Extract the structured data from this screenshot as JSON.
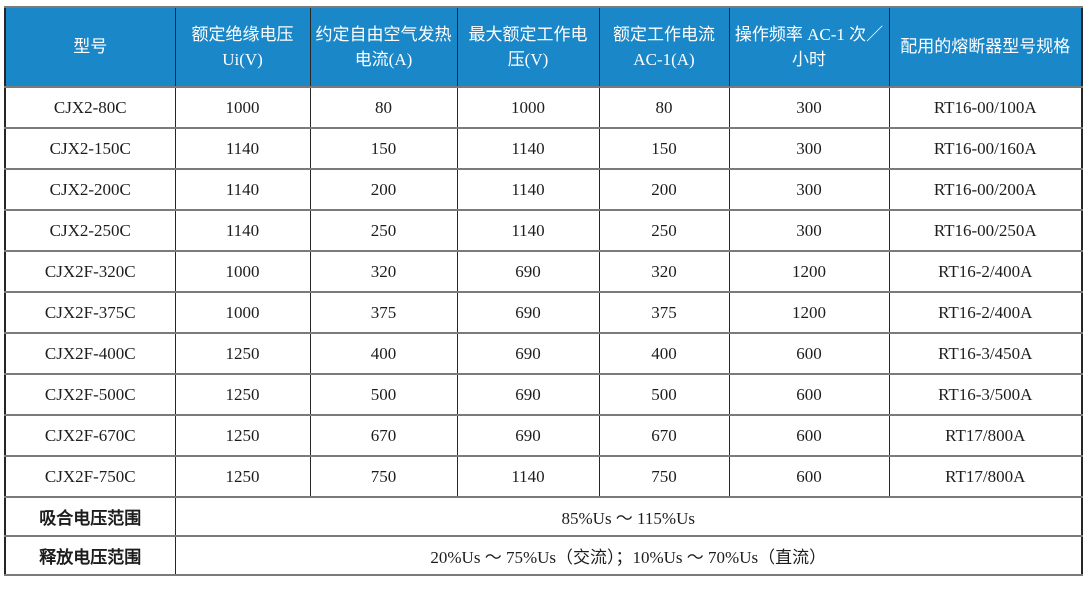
{
  "table": {
    "columns": [
      "型号",
      "额定绝缘电压 Ui(V)",
      "约定自由空气发热电流(A)",
      "最大额定工作电压(V)",
      "额定工作电流 AC-1(A)",
      "操作频率 AC-1 次／小时",
      "配用的熔断器型号规格"
    ],
    "rows": [
      [
        "CJX2-80C",
        "1000",
        "80",
        "1000",
        "80",
        "300",
        "RT16-00/100A"
      ],
      [
        "CJX2-150C",
        "1140",
        "150",
        "1140",
        "150",
        "300",
        "RT16-00/160A"
      ],
      [
        "CJX2-200C",
        "1140",
        "200",
        "1140",
        "200",
        "300",
        "RT16-00/200A"
      ],
      [
        "CJX2-250C",
        "1140",
        "250",
        "1140",
        "250",
        "300",
        "RT16-00/250A"
      ],
      [
        "CJX2F-320C",
        "1000",
        "320",
        "690",
        "320",
        "1200",
        "RT16-2/400A"
      ],
      [
        "CJX2F-375C",
        "1000",
        "375",
        "690",
        "375",
        "1200",
        "RT16-2/400A"
      ],
      [
        "CJX2F-400C",
        "1250",
        "400",
        "690",
        "400",
        "600",
        "RT16-3/450A"
      ],
      [
        "CJX2F-500C",
        "1250",
        "500",
        "690",
        "500",
        "600",
        "RT16-3/500A"
      ],
      [
        "CJX2F-670C",
        "1250",
        "670",
        "690",
        "670",
        "600",
        "RT17/800A"
      ],
      [
        "CJX2F-750C",
        "1250",
        "750",
        "1140",
        "750",
        "600",
        "RT17/800A"
      ]
    ],
    "summary_rows": [
      {
        "label": "吸合电压范围",
        "value": "85%Us ～ 115%Us"
      },
      {
        "label": "释放电压范围",
        "value": "20%Us ～ 75%Us（交流）；10%Us ～ 70%Us（直流）"
      }
    ],
    "colors": {
      "header_bg": "#1a87c8",
      "header_text": "#ffffff",
      "body_text": "#1d1d1d"
    }
  }
}
